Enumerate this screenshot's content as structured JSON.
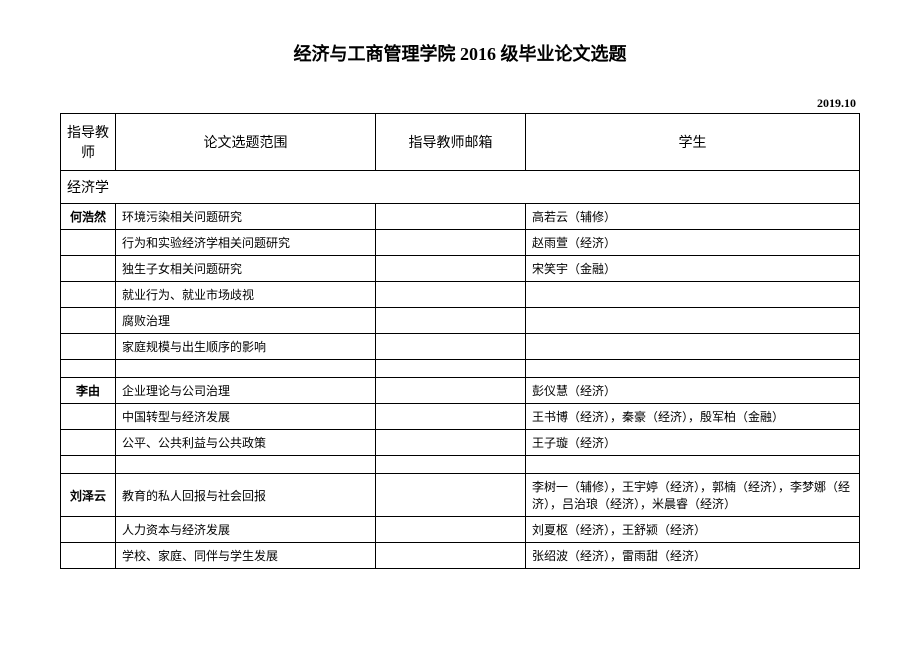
{
  "title": "经济与工商管理学院 2016 级毕业论文选题",
  "date": "2019.10",
  "headers": {
    "advisor": "指导教师",
    "topic": "论文选题范围",
    "email": "指导教师邮箱",
    "student": "学生"
  },
  "section": "经济学",
  "rows": [
    {
      "advisor": "何浩然",
      "topic": "环境污染相关问题研究",
      "email": "",
      "student": "高若云（辅修）"
    },
    {
      "advisor": "",
      "topic": "行为和实验经济学相关问题研究",
      "email": "",
      "student": "赵雨萱（经济）"
    },
    {
      "advisor": "",
      "topic": "独生子女相关问题研究",
      "email": "",
      "student": "宋笑宇（金融）"
    },
    {
      "advisor": "",
      "topic": "就业行为、就业市场歧视",
      "email": "",
      "student": ""
    },
    {
      "advisor": "",
      "topic": "腐败治理",
      "email": "",
      "student": ""
    },
    {
      "advisor": "",
      "topic": "家庭规模与出生顺序的影响",
      "email": "",
      "student": ""
    },
    {
      "advisor": "",
      "topic": "",
      "email": "",
      "student": "",
      "empty": true
    },
    {
      "advisor": "李由",
      "topic": "企业理论与公司治理",
      "email": "",
      "student": "彭仪慧（经济）"
    },
    {
      "advisor": "",
      "topic": "中国转型与经济发展",
      "email": "",
      "student": "王书博（经济），秦豪（经济），殷军柏（金融）"
    },
    {
      "advisor": "",
      "topic": "公平、公共利益与公共政策",
      "email": "",
      "student": "王子璇（经济）"
    },
    {
      "advisor": "",
      "topic": "",
      "email": "",
      "student": "",
      "empty": true
    },
    {
      "advisor": "刘泽云",
      "topic": "教育的私人回报与社会回报",
      "email": "",
      "student": "李树一（辅修），王宇婷（经济），郭楠（经济），李梦娜（经济），吕治琅（经济），米晨睿（经济）",
      "tall": true
    },
    {
      "advisor": "",
      "topic": "人力资本与经济发展",
      "email": "",
      "student": "刘夏枢（经济），王舒颍（经济）"
    },
    {
      "advisor": "",
      "topic": "学校、家庭、同伴与学生发展",
      "email": "",
      "student": "张绍波（经济），雷雨甜（经济）"
    }
  ]
}
